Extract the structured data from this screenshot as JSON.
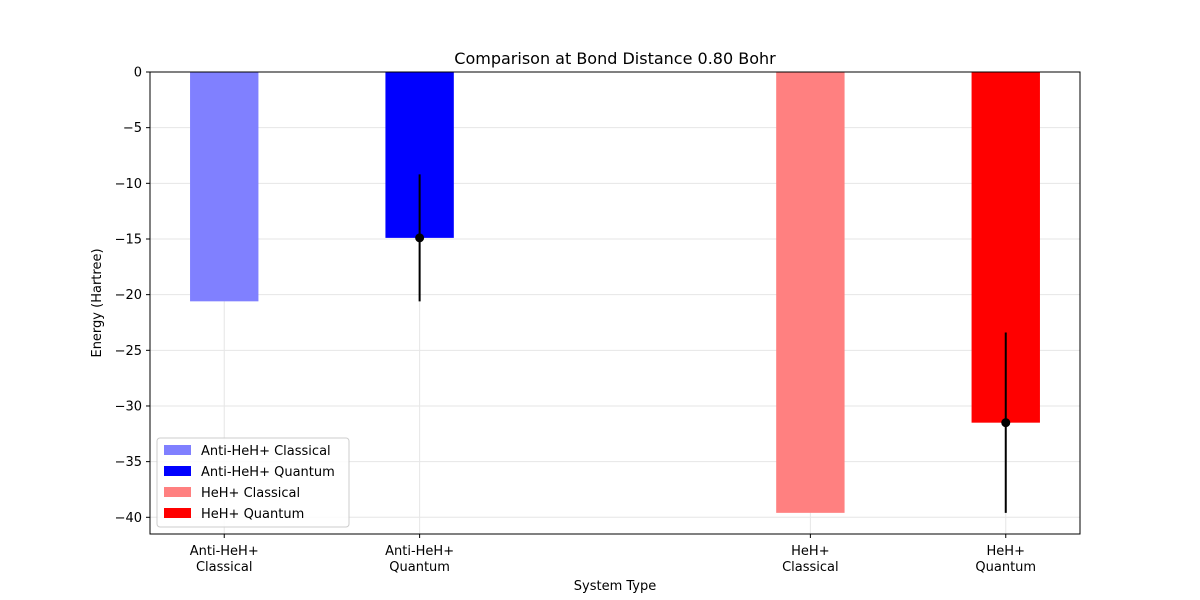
{
  "chart_data": {
    "type": "bar",
    "title": "Comparison at Bond Distance 0.80 Bohr",
    "xlabel": "System Type",
    "ylabel": "Energy (Hartree)",
    "ylim": [
      -41.5,
      0
    ],
    "yticks": [
      0,
      -5,
      -10,
      -15,
      -20,
      -25,
      -30,
      -35,
      -40
    ],
    "ytick_labels": [
      "0",
      "−5",
      "−10",
      "−15",
      "−20",
      "−25",
      "−30",
      "−35",
      "−40"
    ],
    "grid": true,
    "legend_position": "lower-left",
    "categories": [
      {
        "line1": "Anti-HeH+",
        "line2": "Classical"
      },
      {
        "line1": "Anti-HeH+",
        "line2": "Quantum"
      },
      {
        "line1": "HeH+",
        "line2": "Classical"
      },
      {
        "line1": "HeH+",
        "line2": "Quantum"
      }
    ],
    "category_positions": [
      0,
      1,
      3,
      4
    ],
    "x_range": [
      -0.38,
      4.38
    ],
    "bar_width": 0.35,
    "series": [
      {
        "name": "Anti-HeH+ Classical",
        "value": -20.6,
        "color": "#8080ff",
        "error": null
      },
      {
        "name": "Anti-HeH+ Quantum",
        "value": -14.9,
        "color": "#0000ff",
        "error": {
          "center": -14.9,
          "low": -20.6,
          "high": -9.2
        }
      },
      {
        "name": "HeH+ Classical",
        "value": -39.6,
        "color": "#ff8080",
        "error": null
      },
      {
        "name": "HeH+ Quantum",
        "value": -31.5,
        "color": "#ff0000",
        "error": {
          "center": -31.5,
          "low": -39.6,
          "high": -23.4
        }
      }
    ]
  }
}
